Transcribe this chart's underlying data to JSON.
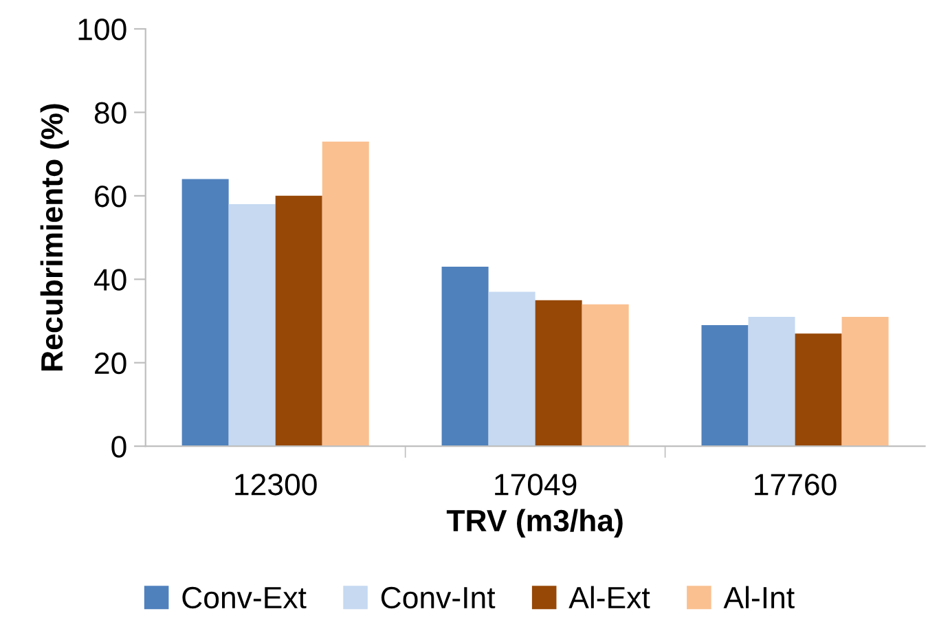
{
  "chart_data": {
    "type": "bar",
    "xlabel": "TRV (m3/ha)",
    "ylabel": "Recubrimiento (%)",
    "categories": [
      "12300",
      "17049",
      "17760"
    ],
    "series": [
      {
        "name": "Conv-Ext",
        "color": "#4f81bd",
        "values": [
          64,
          43,
          29
        ]
      },
      {
        "name": "Conv-Int",
        "color": "#c6d9f1",
        "values": [
          58,
          37,
          31
        ]
      },
      {
        "name": "Al-Ext",
        "color": "#974806",
        "values": [
          60,
          35,
          27
        ]
      },
      {
        "name": "Al-Int",
        "color": "#fac090",
        "values": [
          73,
          34,
          31
        ]
      }
    ],
    "ylim": [
      0,
      100
    ],
    "yticks": [
      0,
      20,
      40,
      60,
      80,
      100
    ],
    "grid": false,
    "legend": "bottom"
  }
}
